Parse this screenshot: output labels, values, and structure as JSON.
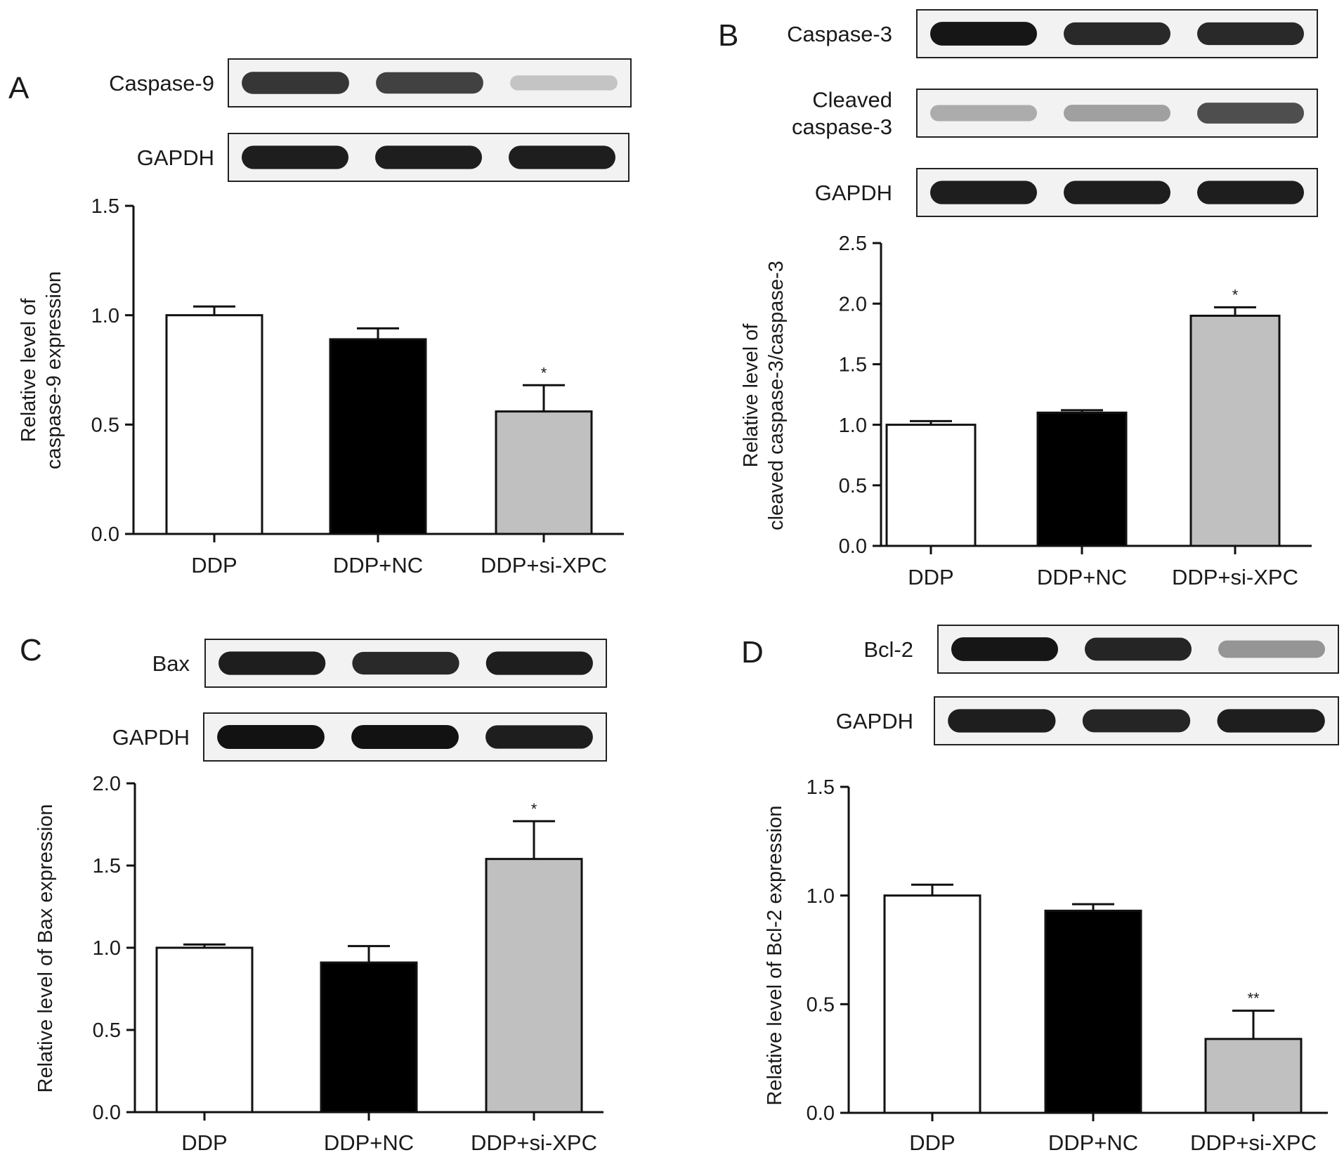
{
  "chart_data": [
    {
      "panel": "A",
      "type": "bar",
      "categories": [
        "DDP",
        "DDP+NC",
        "DDP+si-XPC"
      ],
      "values": [
        1.0,
        0.89,
        0.56
      ],
      "errors": [
        0.04,
        0.05,
        0.12
      ],
      "significance": [
        "",
        "",
        "*"
      ],
      "bar_colors": [
        "#ffffff",
        "#000000",
        "#c0c0c0"
      ],
      "title": "",
      "xlabel": "",
      "ylabel_lines": [
        "Relative level of",
        "caspase-9 expression"
      ],
      "ylim": [
        0,
        1.5
      ],
      "yticks": [
        "0.0",
        "0.5",
        "1.0",
        "1.5"
      ],
      "grid": false,
      "blots": [
        {
          "label_lines": [
            "Caspase-9"
          ],
          "band_intensity": [
            0.85,
            0.8,
            0.25
          ]
        },
        {
          "label_lines": [
            "GAPDH"
          ],
          "band_intensity": [
            0.95,
            0.95,
            0.95
          ]
        }
      ]
    },
    {
      "panel": "B",
      "type": "bar",
      "categories": [
        "DDP",
        "DDP+NC",
        "DDP+si-XPC"
      ],
      "values": [
        1.0,
        1.1,
        1.9
      ],
      "errors": [
        0.03,
        0.02,
        0.07
      ],
      "significance": [
        "",
        "",
        "*"
      ],
      "bar_colors": [
        "#ffffff",
        "#000000",
        "#c0c0c0"
      ],
      "title": "",
      "xlabel": "",
      "ylabel_lines": [
        "Relative level of",
        "cleaved caspase-3/caspase-3"
      ],
      "ylim": [
        0,
        2.5
      ],
      "yticks": [
        "0.0",
        "0.5",
        "1.0",
        "1.5",
        "2.0",
        "2.5"
      ],
      "grid": false,
      "blots": [
        {
          "label_lines": [
            "Caspase-3"
          ],
          "band_intensity": [
            0.98,
            0.9,
            0.9
          ]
        },
        {
          "label_lines": [
            "Cleaved",
            "caspase-3"
          ],
          "band_intensity": [
            0.35,
            0.4,
            0.75
          ]
        },
        {
          "label_lines": [
            "GAPDH"
          ],
          "band_intensity": [
            0.95,
            0.95,
            0.95
          ]
        }
      ]
    },
    {
      "panel": "C",
      "type": "bar",
      "categories": [
        "DDP",
        "DDP+NC",
        "DDP+si-XPC"
      ],
      "values": [
        1.0,
        0.91,
        1.54
      ],
      "errors": [
        0.02,
        0.1,
        0.23
      ],
      "significance": [
        "",
        "",
        "*"
      ],
      "bar_colors": [
        "#ffffff",
        "#000000",
        "#c0c0c0"
      ],
      "title": "",
      "xlabel": "",
      "ylabel_lines": [
        "Relative level of Bax expression"
      ],
      "ylim": [
        0,
        2.0
      ],
      "yticks": [
        "0.0",
        "0.5",
        "1.0",
        "1.5",
        "2.0"
      ],
      "grid": false,
      "blots": [
        {
          "label_lines": [
            "Bax"
          ],
          "band_intensity": [
            0.95,
            0.9,
            0.95
          ]
        },
        {
          "label_lines": [
            "GAPDH"
          ],
          "band_intensity": [
            1.0,
            1.0,
            0.95
          ]
        }
      ]
    },
    {
      "panel": "D",
      "type": "bar",
      "categories": [
        "DDP",
        "DDP+NC",
        "DDP+si-XPC"
      ],
      "values": [
        1.0,
        0.93,
        0.34
      ],
      "errors": [
        0.05,
        0.03,
        0.13
      ],
      "significance": [
        "",
        "",
        "**"
      ],
      "bar_colors": [
        "#ffffff",
        "#000000",
        "#c0c0c0"
      ],
      "title": "",
      "xlabel": "",
      "ylabel_lines": [
        "Relative level of Bcl-2 expression"
      ],
      "ylim": [
        0,
        1.5
      ],
      "yticks": [
        "0.0",
        "0.5",
        "1.0",
        "1.5"
      ],
      "grid": false,
      "blots": [
        {
          "label_lines": [
            "Bcl-2"
          ],
          "band_intensity": [
            0.98,
            0.92,
            0.45
          ]
        },
        {
          "label_lines": [
            "GAPDH"
          ],
          "band_intensity": [
            0.95,
            0.92,
            0.95
          ]
        }
      ]
    }
  ]
}
